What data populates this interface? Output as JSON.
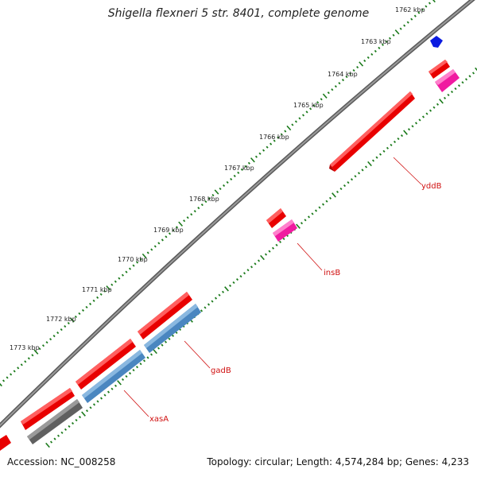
{
  "title": "Shigella flexneri 5 str. 8401, complete genome",
  "accession_text": "Accession: NC_008258",
  "summary_text": "Topology: circular; Length: 4,574,284 bp; Genes: 4,233",
  "scale": {
    "tick_labels": [
      "1762 kbp",
      "1763 kbp",
      "1764 kbp",
      "1765 kbp",
      "1766 kbp",
      "1767 kbp",
      "1768 kbp",
      "1769 kbp",
      "1770 kbp",
      "1771 kbp",
      "1772 kbp",
      "1773 kbp"
    ],
    "tick_color": "#1a7a1a"
  },
  "colors": {
    "backbone": "#7a7a7a",
    "cds_red": "#e80000",
    "cds_blue": "#4a86c0",
    "cds_pink": "#f01aa0",
    "cds_gray": "#606060",
    "cds_navy": "#0a1ae0",
    "label": "#d01010"
  },
  "gene_labels": [
    {
      "name": "yddB",
      "color": "#d01010"
    },
    {
      "name": "insB",
      "color": "#d01010"
    },
    {
      "name": "gadB",
      "color": "#d01010"
    },
    {
      "name": "xasA",
      "color": "#d01010"
    }
  ]
}
